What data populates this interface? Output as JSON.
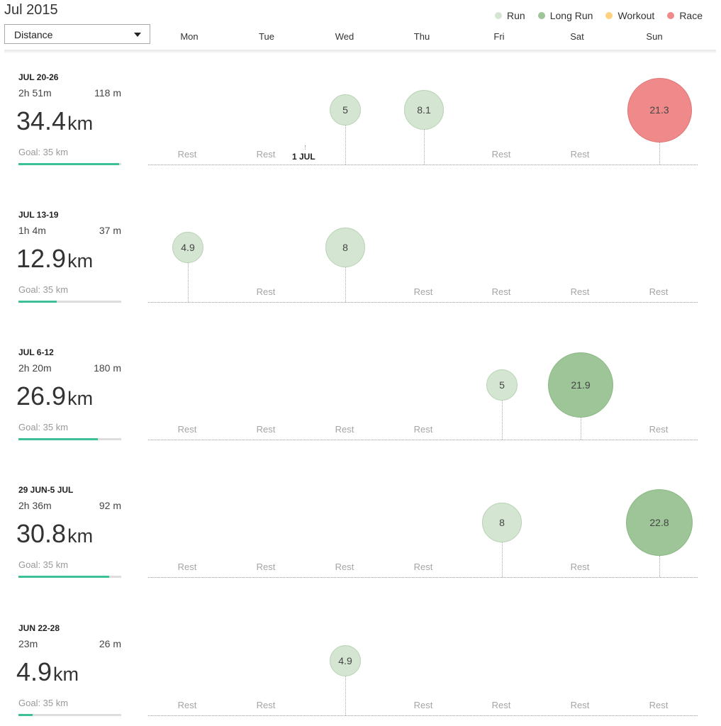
{
  "header": {
    "title": "Jul 2015",
    "metric_select": "Distance",
    "legend": [
      {
        "label": "Run",
        "color": "#d4e6d2"
      },
      {
        "label": "Long Run",
        "color": "#9dc597"
      },
      {
        "label": "Workout",
        "color": "#ffd27f"
      },
      {
        "label": "Race",
        "color": "#f08a8a"
      }
    ],
    "days": [
      "Mon",
      "Tue",
      "Wed",
      "Thu",
      "Fri",
      "Sat",
      "Sun"
    ]
  },
  "rest_label": "Rest",
  "month_marker": "1 JUL",
  "weeks": [
    {
      "range": "JUL 20-26",
      "time": "2h 51m",
      "elevation": "118 m",
      "distance": "34.4",
      "unit": "km",
      "goal": "Goal: 35 km",
      "progress": 0.98,
      "days": [
        {
          "type": "rest"
        },
        {
          "type": "rest"
        },
        {
          "type": "run",
          "value": "5"
        },
        {
          "type": "run",
          "value": "8.1"
        },
        {
          "type": "rest"
        },
        {
          "type": "rest"
        },
        {
          "type": "race",
          "value": "21.3"
        }
      ]
    },
    {
      "range": "JUL 13-19",
      "time": "1h 4m",
      "elevation": "37 m",
      "distance": "12.9",
      "unit": "km",
      "goal": "Goal: 35 km",
      "progress": 0.37,
      "days": [
        {
          "type": "run",
          "value": "4.9"
        },
        {
          "type": "rest"
        },
        {
          "type": "run",
          "value": "8"
        },
        {
          "type": "rest"
        },
        {
          "type": "rest"
        },
        {
          "type": "rest"
        },
        {
          "type": "rest"
        }
      ]
    },
    {
      "range": "JUL 6-12",
      "time": "2h 20m",
      "elevation": "180 m",
      "distance": "26.9",
      "unit": "km",
      "goal": "Goal: 35 km",
      "progress": 0.77,
      "days": [
        {
          "type": "rest"
        },
        {
          "type": "rest"
        },
        {
          "type": "rest"
        },
        {
          "type": "rest"
        },
        {
          "type": "run",
          "value": "5"
        },
        {
          "type": "long",
          "value": "21.9"
        },
        {
          "type": "rest"
        }
      ]
    },
    {
      "range": "29 JUN-5 JUL",
      "time": "2h 36m",
      "elevation": "92 m",
      "distance": "30.8",
      "unit": "km",
      "goal": "Goal: 35 km",
      "progress": 0.88,
      "days": [
        {
          "type": "rest"
        },
        {
          "type": "rest"
        },
        {
          "type": "rest"
        },
        {
          "type": "rest"
        },
        {
          "type": "run",
          "value": "8"
        },
        {
          "type": "rest"
        },
        {
          "type": "long",
          "value": "22.8"
        }
      ]
    },
    {
      "range": "JUN 22-28",
      "time": "23m",
      "elevation": "26 m",
      "distance": "4.9",
      "unit": "km",
      "goal": "Goal: 35 km",
      "progress": 0.14,
      "days": [
        {
          "type": "rest"
        },
        {
          "type": "rest"
        },
        {
          "type": "run",
          "value": "4.9"
        },
        {
          "type": "rest"
        },
        {
          "type": "rest"
        },
        {
          "type": "rest"
        },
        {
          "type": "rest"
        }
      ]
    }
  ]
}
